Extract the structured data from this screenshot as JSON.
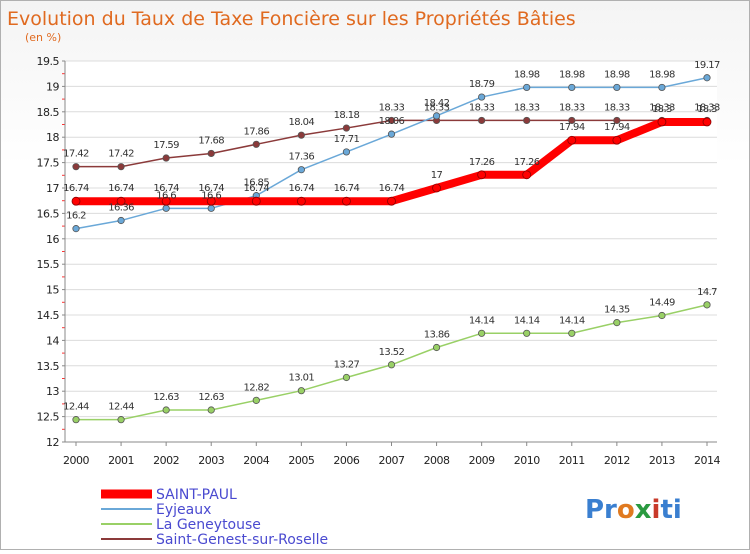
{
  "chart_data": {
    "type": "line",
    "title": "Evolution du Taux de Taxe Foncière sur les Propriétés Bâties",
    "subtitle": "(en %)",
    "xlabel": "",
    "ylabel": "",
    "x": [
      "2000",
      "2001",
      "2002",
      "2003",
      "2004",
      "2005",
      "2006",
      "2007",
      "2008",
      "2009",
      "2010",
      "2011",
      "2012",
      "2013",
      "2014"
    ],
    "ylim": [
      12,
      19.5
    ],
    "yticks": [
      "12",
      "12.5",
      "13",
      "13.5",
      "14",
      "14.5",
      "15",
      "15.5",
      "16",
      "16.5",
      "17",
      "17.5",
      "18",
      "18.5",
      "19",
      "19.5"
    ],
    "grid": "horizontal",
    "legend_position": "bottom-left",
    "series": [
      {
        "name": "SAINT-PAUL",
        "color": "#ff0000",
        "values": [
          16.74,
          16.74,
          16.74,
          16.74,
          16.74,
          16.74,
          16.74,
          16.74,
          17,
          17.26,
          17.26,
          17.94,
          17.94,
          18.3,
          18.3
        ],
        "labels": [
          "16.74",
          "16.74",
          "16.74",
          "16.74",
          "16.74",
          "16.74",
          "16.74",
          "16.74",
          "17",
          "17.26",
          "17.26",
          "17.94",
          "17.94",
          "18.3",
          "18.3"
        ]
      },
      {
        "name": "Eyjeaux",
        "color": "#6aa8d8",
        "values": [
          16.2,
          16.36,
          16.6,
          16.6,
          16.85,
          17.36,
          17.71,
          18.06,
          18.42,
          18.79,
          18.98,
          18.98,
          18.98,
          18.98,
          19.17
        ],
        "labels": [
          "16.2",
          "16.36",
          "16.6",
          "16.6",
          "16.85",
          "17.36",
          "17.71",
          "18.06",
          "18.42",
          "18.79",
          "18.98",
          "18.98",
          "18.98",
          "18.98",
          "19.17"
        ]
      },
      {
        "name": "La Geneytouse",
        "color": "#99d066",
        "values": [
          12.44,
          12.44,
          12.63,
          12.63,
          12.82,
          13.01,
          13.27,
          13.52,
          13.86,
          14.14,
          14.14,
          14.14,
          14.35,
          14.49,
          14.7
        ],
        "labels": [
          "12.44",
          "12.44",
          "12.63",
          "12.63",
          "12.82",
          "13.01",
          "13.27",
          "13.52",
          "13.86",
          "14.14",
          "14.14",
          "14.14",
          "14.35",
          "14.49",
          "14.7"
        ]
      },
      {
        "name": "Saint-Genest-sur-Roselle",
        "color": "#8b3a3a",
        "values": [
          17.42,
          17.42,
          17.59,
          17.68,
          17.86,
          18.04,
          18.18,
          18.33,
          18.33,
          18.33,
          18.33,
          18.33,
          18.33,
          18.33,
          18.33
        ],
        "labels": [
          "17.42",
          "17.42",
          "17.59",
          "17.68",
          "17.86",
          "18.04",
          "18.18",
          "18.33",
          "18.33",
          "18.33",
          "18.33",
          "18.33",
          "18.33",
          "18.33",
          "18.33"
        ]
      }
    ]
  },
  "logo": {
    "parts": [
      "Pr",
      "o",
      "x",
      "i",
      "ti"
    ],
    "colors": [
      "#3a7fd0",
      "#e07a20",
      "#2a9a40",
      "#c83a2a",
      "#3a7fd0"
    ]
  }
}
